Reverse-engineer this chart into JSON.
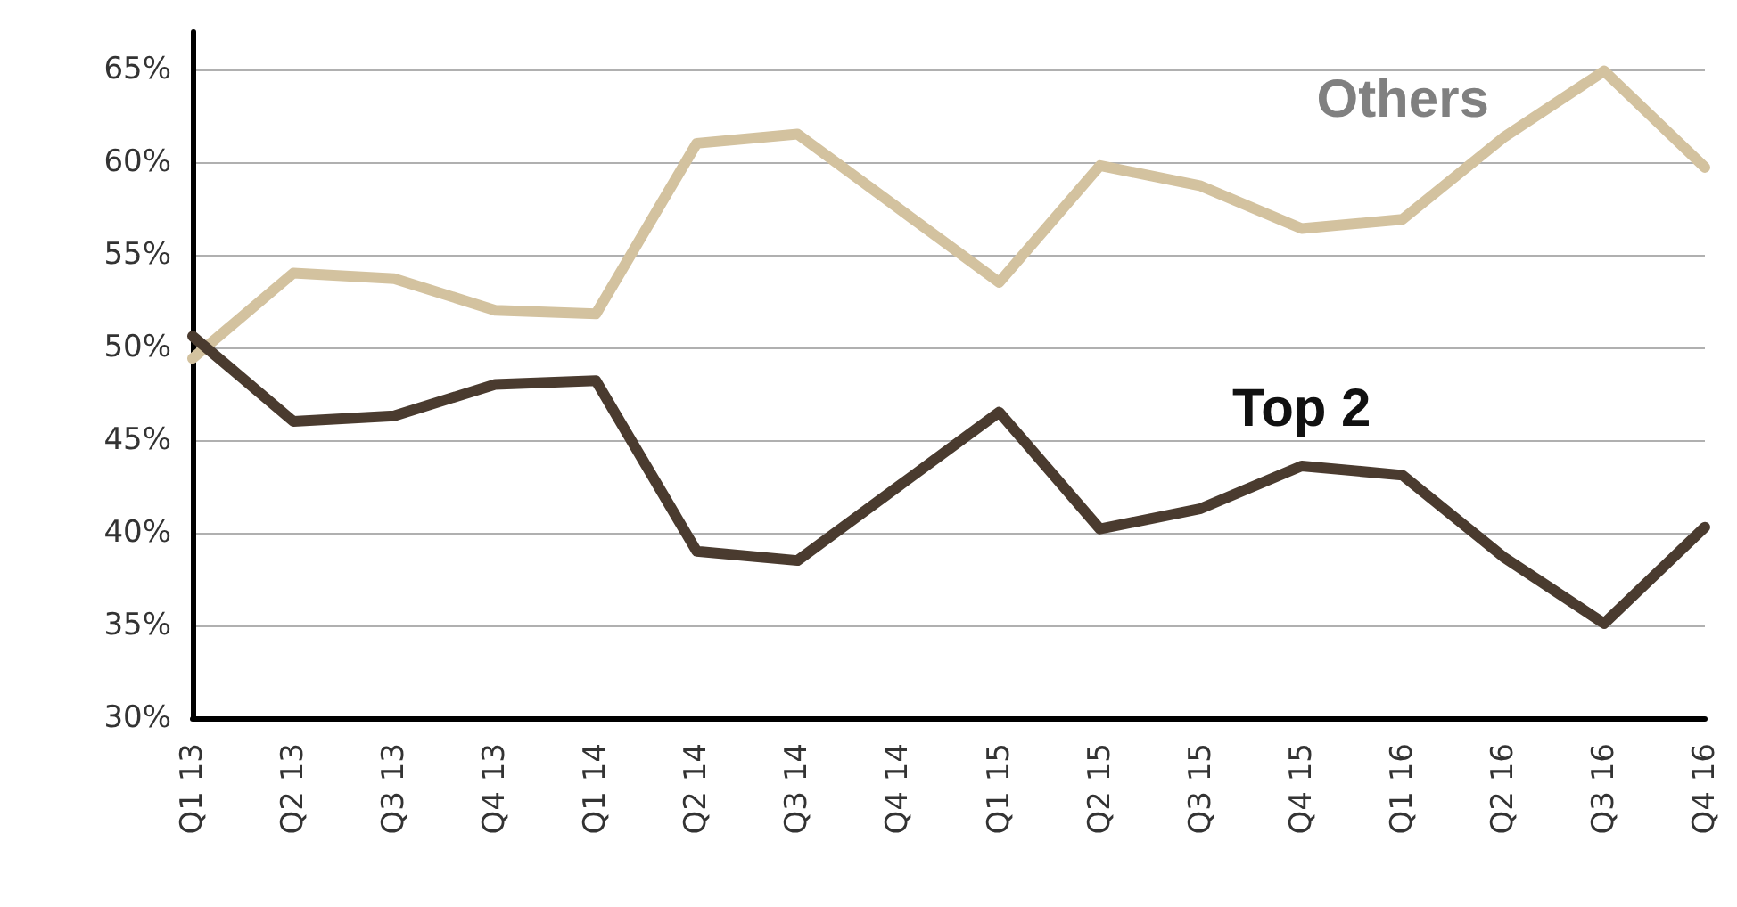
{
  "chart_data": {
    "type": "line",
    "categories": [
      "Q1 13",
      "Q2 13",
      "Q3 13",
      "Q4 13",
      "Q1 14",
      "Q2 14",
      "Q3 14",
      "Q4 14",
      "Q1 15",
      "Q2 15",
      "Q3 15",
      "Q4 15",
      "Q1 16",
      "Q2 16",
      "Q3 16",
      "Q4 16"
    ],
    "series": [
      {
        "name": "Others",
        "color": "#d3c29f",
        "values": [
          49.4,
          54.0,
          53.7,
          52.0,
          51.8,
          61.0,
          61.5,
          57.5,
          53.5,
          59.8,
          58.7,
          56.4,
          56.9,
          61.3,
          64.9,
          59.7
        ]
      },
      {
        "name": "Top 2",
        "color": "#4a3b2f",
        "values": [
          50.6,
          46.0,
          46.3,
          48.0,
          48.2,
          39.0,
          38.5,
          42.5,
          46.5,
          40.2,
          41.3,
          43.6,
          43.1,
          38.7,
          35.1,
          40.3
        ]
      }
    ],
    "ylim": [
      30,
      67
    ],
    "yticks": [
      {
        "value": 30,
        "label": "30%"
      },
      {
        "value": 35,
        "label": "35%"
      },
      {
        "value": 40,
        "label": "40%"
      },
      {
        "value": 45,
        "label": "45%"
      },
      {
        "value": 50,
        "label": "50%"
      },
      {
        "value": 55,
        "label": "55%"
      },
      {
        "value": 60,
        "label": "60%"
      },
      {
        "value": 65,
        "label": "65%"
      }
    ],
    "grid": "y",
    "legend": false,
    "marker": "none",
    "line_style": "solid"
  }
}
